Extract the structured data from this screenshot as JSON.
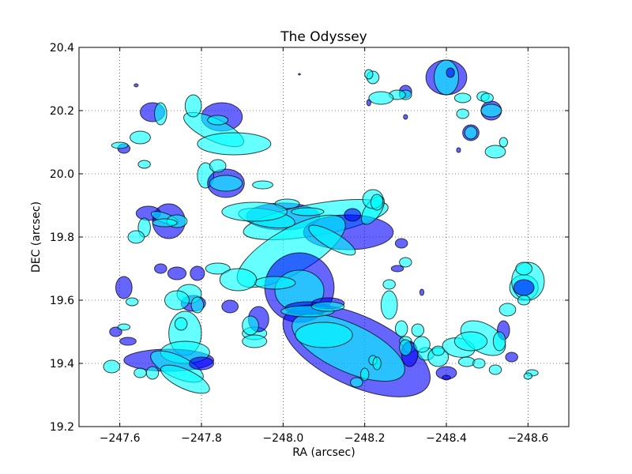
{
  "chart_data": {
    "type": "scatter",
    "title": "The Odyssey",
    "xlabel": "RA (arcsec)",
    "ylabel": "DEC (arcsec)",
    "xlim": [
      -247.5,
      -248.7
    ],
    "ylim": [
      19.2,
      20.4
    ],
    "x_ticks": [
      -247.6,
      -247.8,
      -248.0,
      -248.2,
      -248.4,
      -248.6
    ],
    "x_tick_labels": [
      "−247.6",
      "−247.8",
      "−248.0",
      "−248.2",
      "−248.4",
      "−248.6"
    ],
    "y_ticks": [
      19.2,
      19.4,
      19.6,
      19.8,
      20.0,
      20.2,
      20.4
    ],
    "y_tick_labels": [
      "19.2",
      "19.4",
      "19.6",
      "19.8",
      "20.0",
      "20.2",
      "20.4"
    ],
    "grid": true,
    "grid_style": "dotted",
    "colors": {
      "blue": "#0000ff",
      "cyan": "#00ffff",
      "edge": "#000000"
    },
    "ellipse_fields": [
      "ra",
      "dec",
      "width_arcsec",
      "height_arcsec",
      "angle_deg",
      "color",
      "alpha"
    ],
    "ellipses": [
      [
        -248.0,
        19.865,
        0.18,
        0.085,
        0,
        "blue",
        0.6
      ],
      [
        -248.08,
        19.855,
        0.36,
        0.1,
        10,
        "cyan",
        0.6
      ],
      [
        -248.16,
        19.815,
        0.22,
        0.11,
        0,
        "blue",
        0.6
      ],
      [
        -248.02,
        19.755,
        0.3,
        0.14,
        30,
        "cyan",
        0.6
      ],
      [
        -248.04,
        19.64,
        0.17,
        0.22,
        0,
        "blue",
        0.6
      ],
      [
        -248.04,
        19.63,
        0.12,
        0.13,
        0,
        "cyan",
        0.6
      ],
      [
        -248.18,
        19.44,
        0.39,
        0.22,
        -25,
        "blue",
        0.6
      ],
      [
        -248.16,
        19.45,
        0.3,
        0.15,
        -25,
        "cyan",
        0.6
      ],
      [
        -248.1,
        19.49,
        0.14,
        0.08,
        0,
        "cyan",
        0.6
      ],
      [
        -248.06,
        19.575,
        0.11,
        0.04,
        0,
        "blue",
        0.6
      ],
      [
        -248.06,
        19.565,
        0.13,
        0.035,
        0,
        "cyan",
        0.6
      ],
      [
        -248.22,
        19.885,
        0.08,
        0.05,
        55,
        "cyan",
        0.6
      ],
      [
        -248.12,
        19.79,
        0.13,
        0.05,
        -30,
        "cyan",
        0.6
      ],
      [
        -248.06,
        19.88,
        0.08,
        0.025,
        0,
        "cyan",
        0.6
      ],
      [
        -247.96,
        19.86,
        0.14,
        0.055,
        -10,
        "cyan",
        0.6
      ],
      [
        -247.98,
        19.655,
        0.1,
        0.04,
        0,
        "cyan",
        0.6
      ],
      [
        -248.01,
        19.905,
        0.06,
        0.03,
        0,
        "cyan",
        0.6
      ],
      [
        -247.76,
        19.495,
        0.08,
        0.14,
        0,
        "cyan",
        0.6
      ],
      [
        -247.72,
        19.41,
        0.22,
        0.07,
        0,
        "blue",
        0.6
      ],
      [
        -247.76,
        19.435,
        0.12,
        0.07,
        0,
        "cyan",
        0.6
      ],
      [
        -247.74,
        19.39,
        0.14,
        0.07,
        -25,
        "cyan",
        0.6
      ],
      [
        -247.76,
        19.35,
        0.13,
        0.06,
        -25,
        "cyan",
        0.6
      ],
      [
        -247.8,
        19.4,
        0.06,
        0.04,
        0,
        "blue",
        0.6
      ],
      [
        -247.68,
        19.37,
        0.03,
        0.04,
        0,
        "cyan",
        0.6
      ],
      [
        -247.72,
        19.85,
        0.08,
        0.11,
        0,
        "blue",
        0.6
      ],
      [
        -247.67,
        19.875,
        0.06,
        0.045,
        0,
        "blue",
        0.6
      ],
      [
        -247.71,
        19.86,
        0.07,
        0.03,
        -20,
        "cyan",
        0.6
      ],
      [
        -247.74,
        19.85,
        0.05,
        0.04,
        0,
        "cyan",
        0.6
      ],
      [
        -247.66,
        19.83,
        0.03,
        0.06,
        0,
        "cyan",
        0.6
      ],
      [
        -247.71,
        19.845,
        0.06,
        0.025,
        0,
        "cyan",
        0.6
      ],
      [
        -247.85,
        20.18,
        0.1,
        0.09,
        0,
        "blue",
        0.6
      ],
      [
        -247.83,
        20.14,
        0.16,
        0.07,
        -25,
        "cyan",
        0.6
      ],
      [
        -247.88,
        20.095,
        0.18,
        0.07,
        0,
        "cyan",
        0.6
      ],
      [
        -247.84,
        20.17,
        0.05,
        0.03,
        0,
        "cyan",
        0.6
      ],
      [
        -247.78,
        20.215,
        0.04,
        0.07,
        0,
        "cyan",
        0.6
      ],
      [
        -247.68,
        20.195,
        0.06,
        0.06,
        0,
        "blue",
        0.6
      ],
      [
        -247.7,
        20.19,
        0.03,
        0.07,
        0,
        "cyan",
        0.6
      ],
      [
        -247.65,
        20.115,
        0.05,
        0.04,
        0,
        "cyan",
        0.6
      ],
      [
        -247.81,
        19.995,
        0.04,
        0.08,
        0,
        "cyan",
        0.6
      ],
      [
        -247.86,
        19.97,
        0.09,
        0.09,
        0,
        "blue",
        0.6
      ],
      [
        -247.86,
        19.97,
        0.08,
        0.05,
        0,
        "cyan",
        0.6
      ],
      [
        -247.84,
        20.025,
        0.04,
        0.04,
        0,
        "cyan",
        0.6
      ],
      [
        -247.95,
        19.965,
        0.05,
        0.025,
        0,
        "cyan",
        0.6
      ],
      [
        -247.93,
        19.88,
        0.16,
        0.06,
        0,
        "cyan",
        0.6
      ],
      [
        -247.84,
        19.7,
        0.06,
        0.035,
        0,
        "cyan",
        0.6
      ],
      [
        -247.89,
        19.665,
        0.09,
        0.07,
        0,
        "cyan",
        0.6
      ],
      [
        -247.74,
        19.685,
        0.045,
        0.04,
        0,
        "blue",
        0.6
      ],
      [
        -247.79,
        19.685,
        0.035,
        0.045,
        0,
        "blue",
        0.6
      ],
      [
        -247.78,
        19.59,
        0.06,
        0.05,
        0,
        "blue",
        0.6
      ],
      [
        -247.77,
        19.62,
        0.06,
        0.06,
        0,
        "cyan",
        0.6
      ],
      [
        -247.74,
        19.6,
        0.06,
        0.06,
        0,
        "cyan",
        0.6
      ],
      [
        -247.79,
        19.585,
        0.03,
        0.05,
        0,
        "cyan",
        0.6
      ],
      [
        -247.75,
        19.525,
        0.03,
        0.04,
        0,
        "cyan",
        0.6
      ],
      [
        -247.87,
        19.58,
        0.04,
        0.04,
        0,
        "blue",
        0.6
      ],
      [
        -247.93,
        19.495,
        0.06,
        0.04,
        0,
        "cyan",
        0.6
      ],
      [
        -247.93,
        19.47,
        0.06,
        0.04,
        0,
        "cyan",
        0.6
      ],
      [
        -247.94,
        19.54,
        0.05,
        0.08,
        0,
        "blue",
        0.6
      ],
      [
        -247.92,
        19.52,
        0.04,
        0.06,
        0,
        "cyan",
        0.6
      ],
      [
        -247.63,
        19.595,
        0.03,
        0.025,
        0,
        "cyan",
        0.6
      ],
      [
        -247.64,
        19.8,
        0.04,
        0.04,
        0,
        "cyan",
        0.6
      ],
      [
        -247.61,
        19.64,
        0.04,
        0.07,
        0,
        "blue",
        0.6
      ],
      [
        -247.59,
        19.5,
        0.03,
        0.03,
        0,
        "blue",
        0.6
      ],
      [
        -247.61,
        19.515,
        0.03,
        0.02,
        0,
        "cyan",
        0.6
      ],
      [
        -247.62,
        19.47,
        0.04,
        0.025,
        0,
        "blue",
        0.6
      ],
      [
        -247.58,
        19.39,
        0.04,
        0.04,
        0,
        "cyan",
        0.6
      ],
      [
        -247.65,
        19.37,
        0.03,
        0.03,
        0,
        "cyan",
        0.6
      ],
      [
        -247.61,
        20.08,
        0.03,
        0.03,
        0,
        "blue",
        0.6
      ],
      [
        -247.6,
        20.09,
        0.04,
        0.02,
        0,
        "cyan",
        0.6
      ],
      [
        -247.66,
        20.03,
        0.03,
        0.025,
        0,
        "cyan",
        0.6
      ],
      [
        -247.64,
        20.28,
        0.01,
        0.01,
        0,
        "blue",
        0.6
      ],
      [
        -247.7,
        19.7,
        0.03,
        0.03,
        0,
        "blue",
        0.6
      ],
      [
        -248.11,
        19.59,
        0.08,
        0.035,
        0,
        "blue",
        0.6
      ],
      [
        -248.11,
        19.58,
        0.08,
        0.03,
        0,
        "cyan",
        0.6
      ],
      [
        -248.18,
        19.34,
        0.03,
        0.03,
        0,
        "cyan",
        0.6
      ],
      [
        -248.2,
        19.365,
        0.02,
        0.04,
        0,
        "cyan",
        0.6
      ],
      [
        -248.22,
        19.41,
        0.02,
        0.03,
        0,
        "cyan",
        0.6
      ],
      [
        -248.23,
        19.4,
        0.02,
        0.04,
        0,
        "cyan",
        0.6
      ],
      [
        -248.22,
        19.92,
        0.05,
        0.06,
        0,
        "cyan",
        0.6
      ],
      [
        -248.23,
        19.91,
        0.03,
        0.05,
        0,
        "cyan",
        0.6
      ],
      [
        -248.29,
        19.78,
        0.03,
        0.03,
        0,
        "blue",
        0.6
      ],
      [
        -248.3,
        19.72,
        0.03,
        0.03,
        0,
        "cyan",
        0.6
      ],
      [
        -248.26,
        19.65,
        0.03,
        0.03,
        0,
        "cyan",
        0.6
      ],
      [
        -248.26,
        19.585,
        0.04,
        0.09,
        0,
        "cyan",
        0.6
      ],
      [
        -248.29,
        19.51,
        0.03,
        0.05,
        0,
        "cyan",
        0.6
      ],
      [
        -248.3,
        19.47,
        0.03,
        0.03,
        0,
        "cyan",
        0.6
      ],
      [
        -248.31,
        19.45,
        0.03,
        0.03,
        0,
        "cyan",
        0.6
      ],
      [
        -248.33,
        19.505,
        0.03,
        0.04,
        0,
        "cyan",
        0.6
      ],
      [
        -248.35,
        19.43,
        0.04,
        0.04,
        0,
        "cyan",
        0.6
      ],
      [
        -248.38,
        19.42,
        0.05,
        0.06,
        0,
        "cyan",
        0.6
      ],
      [
        -248.43,
        19.45,
        0.08,
        0.06,
        -10,
        "cyan",
        0.6
      ],
      [
        -248.49,
        19.48,
        0.12,
        0.09,
        -30,
        "cyan",
        0.6
      ],
      [
        -248.46,
        19.47,
        0.08,
        0.06,
        0,
        "cyan",
        0.6
      ],
      [
        -248.45,
        19.405,
        0.04,
        0.03,
        0,
        "cyan",
        0.6
      ],
      [
        -248.4,
        19.37,
        0.05,
        0.04,
        0,
        "blue",
        0.6
      ],
      [
        -248.4,
        19.355,
        0.02,
        0.015,
        0,
        "blue",
        0.6
      ],
      [
        -248.31,
        19.43,
        0.04,
        0.08,
        0,
        "blue",
        0.6
      ],
      [
        -248.3,
        19.45,
        0.03,
        0.05,
        0,
        "cyan",
        0.6
      ],
      [
        -248.38,
        19.44,
        0.03,
        0.03,
        0,
        "cyan",
        0.6
      ],
      [
        -248.34,
        19.46,
        0.04,
        0.05,
        0,
        "cyan",
        0.6
      ],
      [
        -248.54,
        19.505,
        0.03,
        0.06,
        0,
        "blue",
        0.6
      ],
      [
        -248.53,
        19.47,
        0.03,
        0.06,
        0,
        "cyan",
        0.6
      ],
      [
        -248.55,
        19.57,
        0.04,
        0.04,
        0,
        "cyan",
        0.6
      ],
      [
        -248.59,
        19.64,
        0.07,
        0.08,
        0,
        "cyan",
        0.6
      ],
      [
        -248.6,
        19.66,
        0.08,
        0.12,
        0,
        "cyan",
        0.6
      ],
      [
        -248.59,
        19.64,
        0.05,
        0.05,
        0,
        "blue",
        0.6
      ],
      [
        -248.59,
        19.7,
        0.04,
        0.04,
        0,
        "cyan",
        0.6
      ],
      [
        -248.59,
        19.6,
        0.03,
        0.03,
        0,
        "cyan",
        0.6
      ],
      [
        -248.52,
        19.38,
        0.03,
        0.03,
        0,
        "cyan",
        0.6
      ],
      [
        -248.48,
        19.4,
        0.03,
        0.03,
        0,
        "cyan",
        0.6
      ],
      [
        -248.56,
        19.42,
        0.03,
        0.03,
        0,
        "blue",
        0.6
      ],
      [
        -248.61,
        19.37,
        0.03,
        0.02,
        0,
        "cyan",
        0.6
      ],
      [
        -248.6,
        19.36,
        0.02,
        0.02,
        0,
        "cyan",
        0.6
      ],
      [
        -248.4,
        20.305,
        0.1,
        0.11,
        0,
        "blue",
        0.6
      ],
      [
        -248.4,
        20.305,
        0.06,
        0.11,
        0,
        "cyan",
        0.6
      ],
      [
        -248.41,
        20.32,
        0.02,
        0.03,
        0,
        "blue",
        0.6
      ],
      [
        -248.3,
        20.26,
        0.03,
        0.04,
        0,
        "blue",
        0.6
      ],
      [
        -248.3,
        20.25,
        0.03,
        0.03,
        0,
        "cyan",
        0.6
      ],
      [
        -248.28,
        20.25,
        0.04,
        0.03,
        0,
        "cyan",
        0.6
      ],
      [
        -248.24,
        20.24,
        0.06,
        0.04,
        0,
        "cyan",
        0.6
      ],
      [
        -248.22,
        20.305,
        0.03,
        0.04,
        0,
        "cyan",
        0.6
      ],
      [
        -248.21,
        20.315,
        0.02,
        0.03,
        0,
        "cyan",
        0.6
      ],
      [
        -248.44,
        20.24,
        0.04,
        0.03,
        0,
        "cyan",
        0.6
      ],
      [
        -248.44,
        20.19,
        0.03,
        0.03,
        0,
        "cyan",
        0.6
      ],
      [
        -248.51,
        20.2,
        0.05,
        0.06,
        0,
        "blue",
        0.6
      ],
      [
        -248.51,
        20.2,
        0.05,
        0.04,
        0,
        "cyan",
        0.6
      ],
      [
        -248.49,
        20.245,
        0.03,
        0.03,
        0,
        "cyan",
        0.6
      ],
      [
        -248.5,
        20.24,
        0.03,
        0.03,
        0,
        "cyan",
        0.6
      ],
      [
        -248.46,
        20.13,
        0.04,
        0.05,
        0,
        "blue",
        0.6
      ],
      [
        -248.46,
        20.13,
        0.03,
        0.04,
        0,
        "cyan",
        0.6
      ],
      [
        -248.52,
        20.07,
        0.05,
        0.04,
        0,
        "cyan",
        0.6
      ],
      [
        -248.54,
        20.1,
        0.02,
        0.03,
        0,
        "cyan",
        0.6
      ],
      [
        -248.17,
        19.87,
        0.04,
        0.04,
        0,
        "blue",
        0.6
      ],
      [
        -248.34,
        19.625,
        0.01,
        0.02,
        0,
        "blue",
        0.6
      ],
      [
        -248.28,
        19.7,
        0.03,
        0.02,
        0,
        "blue",
        0.6
      ],
      [
        -248.04,
        20.315,
        0.005,
        0.005,
        0,
        "blue",
        0.6
      ],
      [
        -248.21,
        20.225,
        0.01,
        0.02,
        0,
        "blue",
        0.6
      ],
      [
        -248.3,
        20.18,
        0.01,
        0.015,
        0,
        "blue",
        0.6
      ],
      [
        -248.43,
        20.075,
        0.01,
        0.015,
        0,
        "blue",
        0.6
      ]
    ]
  }
}
